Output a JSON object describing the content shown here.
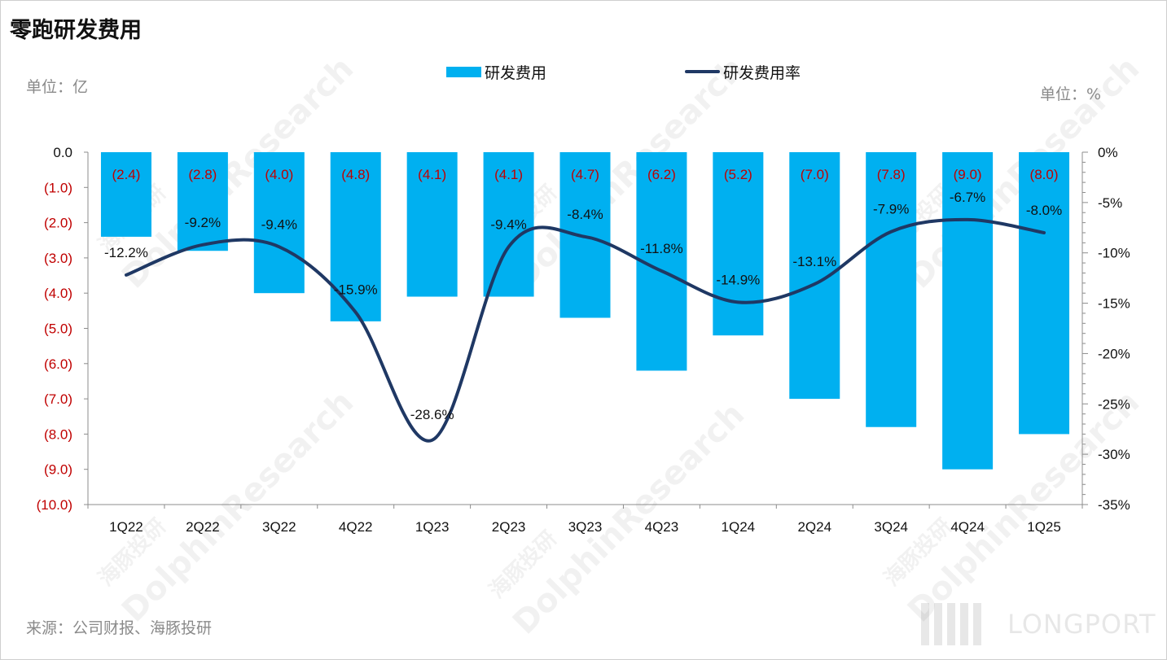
{
  "title": "零跑研发费用",
  "unit_left": "单位：亿",
  "unit_right": "单位：%",
  "source": "来源：公司财报、海豚投研",
  "watermark": {
    "cn": "海豚投研",
    "en": "DolphinResearch",
    "brand": "LONGPORT"
  },
  "colors": {
    "bar": "#00b0f0",
    "line": "#1f3864",
    "negative_label": "#c00000",
    "text": "#111111"
  },
  "chart_data": {
    "type": "bar+line",
    "categories": [
      "1Q22",
      "2Q22",
      "3Q22",
      "4Q22",
      "1Q23",
      "2Q23",
      "3Q23",
      "4Q23",
      "1Q24",
      "2Q24",
      "3Q24",
      "4Q24",
      "1Q25"
    ],
    "series": [
      {
        "name": "研发费用",
        "type": "bar",
        "axis": "left",
        "values": [
          -2.4,
          -2.8,
          -4.0,
          -4.8,
          -4.1,
          -4.1,
          -4.7,
          -6.2,
          -5.2,
          -7.0,
          -7.8,
          -9.0,
          -8.0
        ],
        "labels": [
          "(2.4)",
          "(2.8)",
          "(4.0)",
          "(4.8)",
          "(4.1)",
          "(4.1)",
          "(4.7)",
          "(6.2)",
          "(5.2)",
          "(7.0)",
          "(7.8)",
          "(9.0)",
          "(8.0)"
        ]
      },
      {
        "name": "研发费用率",
        "type": "line",
        "axis": "right",
        "values": [
          -12.2,
          -9.2,
          -9.4,
          -15.9,
          -28.6,
          -9.4,
          -8.4,
          -11.8,
          -14.9,
          -13.1,
          -7.9,
          -6.7,
          -8.0
        ],
        "labels": [
          "-12.2%",
          "-9.2%",
          "-9.4%",
          "-15.9%",
          "-28.6%",
          "-9.4%",
          "-8.4%",
          "-11.8%",
          "-14.9%",
          "-13.1%",
          "-7.9%",
          "-6.7%",
          "-8.0%"
        ]
      }
    ],
    "y_left": {
      "range": [
        -10,
        0
      ],
      "ticks": [
        0,
        -1,
        -2,
        -3,
        -4,
        -5,
        -6,
        -7,
        -8,
        -9,
        -10
      ],
      "tick_labels": [
        "0.0",
        "(1.0)",
        "(2.0)",
        "(3.0)",
        "(4.0)",
        "(5.0)",
        "(6.0)",
        "(7.0)",
        "(8.0)",
        "(9.0)",
        "(10.0)"
      ]
    },
    "y_right": {
      "range": [
        -35,
        0
      ],
      "ticks": [
        0,
        -5,
        -10,
        -15,
        -20,
        -25,
        -30,
        -35
      ],
      "tick_labels": [
        "0%",
        "-5%",
        "-10%",
        "-15%",
        "-20%",
        "-25%",
        "-30%",
        "-35%"
      ]
    },
    "legend_position": "top-center",
    "grid": false
  }
}
